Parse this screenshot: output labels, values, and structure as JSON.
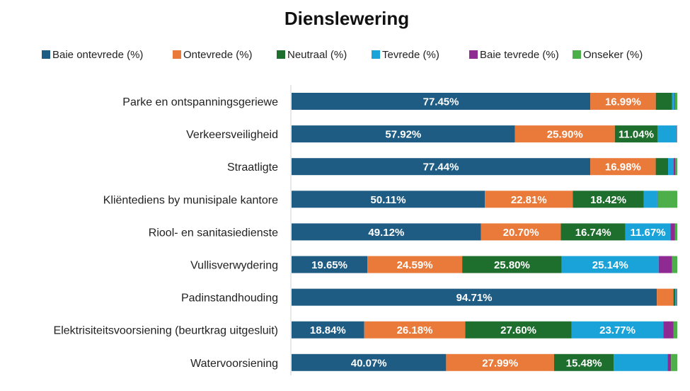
{
  "chart_data": {
    "type": "bar",
    "orientation": "horizontal",
    "stacked": true,
    "normalized_100": true,
    "title": "Dienslewering",
    "legend_position": "top",
    "grid": false,
    "xlim": [
      0,
      100
    ],
    "categories": [
      "Parke en ontspanningsgeriewe",
      "Verkeersveiligheid",
      "Straatligte",
      "Kliëntediens by munisipale kantore",
      "Riool- en sanitasiedienste",
      "Vullisverwydering",
      "Padinstandhouding",
      "Elektrisiteitsvoorsiening (beurtkrag uitgesluit)",
      "Watervoorsiening"
    ],
    "series": [
      {
        "name": "Baie ontevrede (%)",
        "color": "#1f5c84",
        "values": [
          77.45,
          57.92,
          77.44,
          50.11,
          49.12,
          19.65,
          94.71,
          18.84,
          40.07
        ],
        "labels": [
          "77.45%",
          "57.92%",
          "77.44%",
          "50.11%",
          "49.12%",
          "19.65%",
          "94.71%",
          "18.84%",
          "40.07%"
        ]
      },
      {
        "name": "Ontevrede (%)",
        "color": "#e97a3a",
        "values": [
          16.99,
          25.9,
          16.98,
          22.81,
          20.7,
          24.59,
          4.3,
          26.18,
          27.99
        ],
        "labels": [
          "16.99%",
          "25.90%",
          "16.98%",
          "22.81%",
          "20.70%",
          "24.59%",
          "",
          "26.18%",
          "27.99%"
        ]
      },
      {
        "name": "Neutraal (%)",
        "color": "#1e6e2e",
        "values": [
          4.2,
          11.04,
          3.2,
          18.42,
          16.74,
          25.8,
          0.5,
          27.6,
          15.48
        ],
        "labels": [
          "",
          "11.04%",
          "",
          "18.42%",
          "16.74%",
          "25.80%",
          "",
          "27.60%",
          "15.48%"
        ]
      },
      {
        "name": "Tevrede (%)",
        "color": "#1aa3d9",
        "values": [
          0.6,
          5.0,
          1.4,
          3.5,
          11.67,
          25.14,
          0.3,
          23.77,
          13.94
        ],
        "labels": [
          "",
          "",
          "",
          "",
          "11.67%",
          "25.14%",
          "",
          "23.77%",
          ""
        ]
      },
      {
        "name": "Baie tevrede (%)",
        "color": "#8e2a91",
        "values": [
          0.2,
          0.1,
          0.5,
          0.1,
          1.2,
          3.5,
          0.1,
          2.6,
          0.9
        ],
        "labels": [
          "",
          "",
          "",
          "",
          "",
          "",
          "",
          "",
          ""
        ]
      },
      {
        "name": "Onseker (%)",
        "color": "#4daf4a",
        "values": [
          0.56,
          0.04,
          0.48,
          5.06,
          0.57,
          1.32,
          0.09,
          1.01,
          1.62
        ],
        "labels": [
          "",
          "",
          "",
          "",
          "",
          "",
          "",
          "",
          ""
        ]
      }
    ]
  }
}
